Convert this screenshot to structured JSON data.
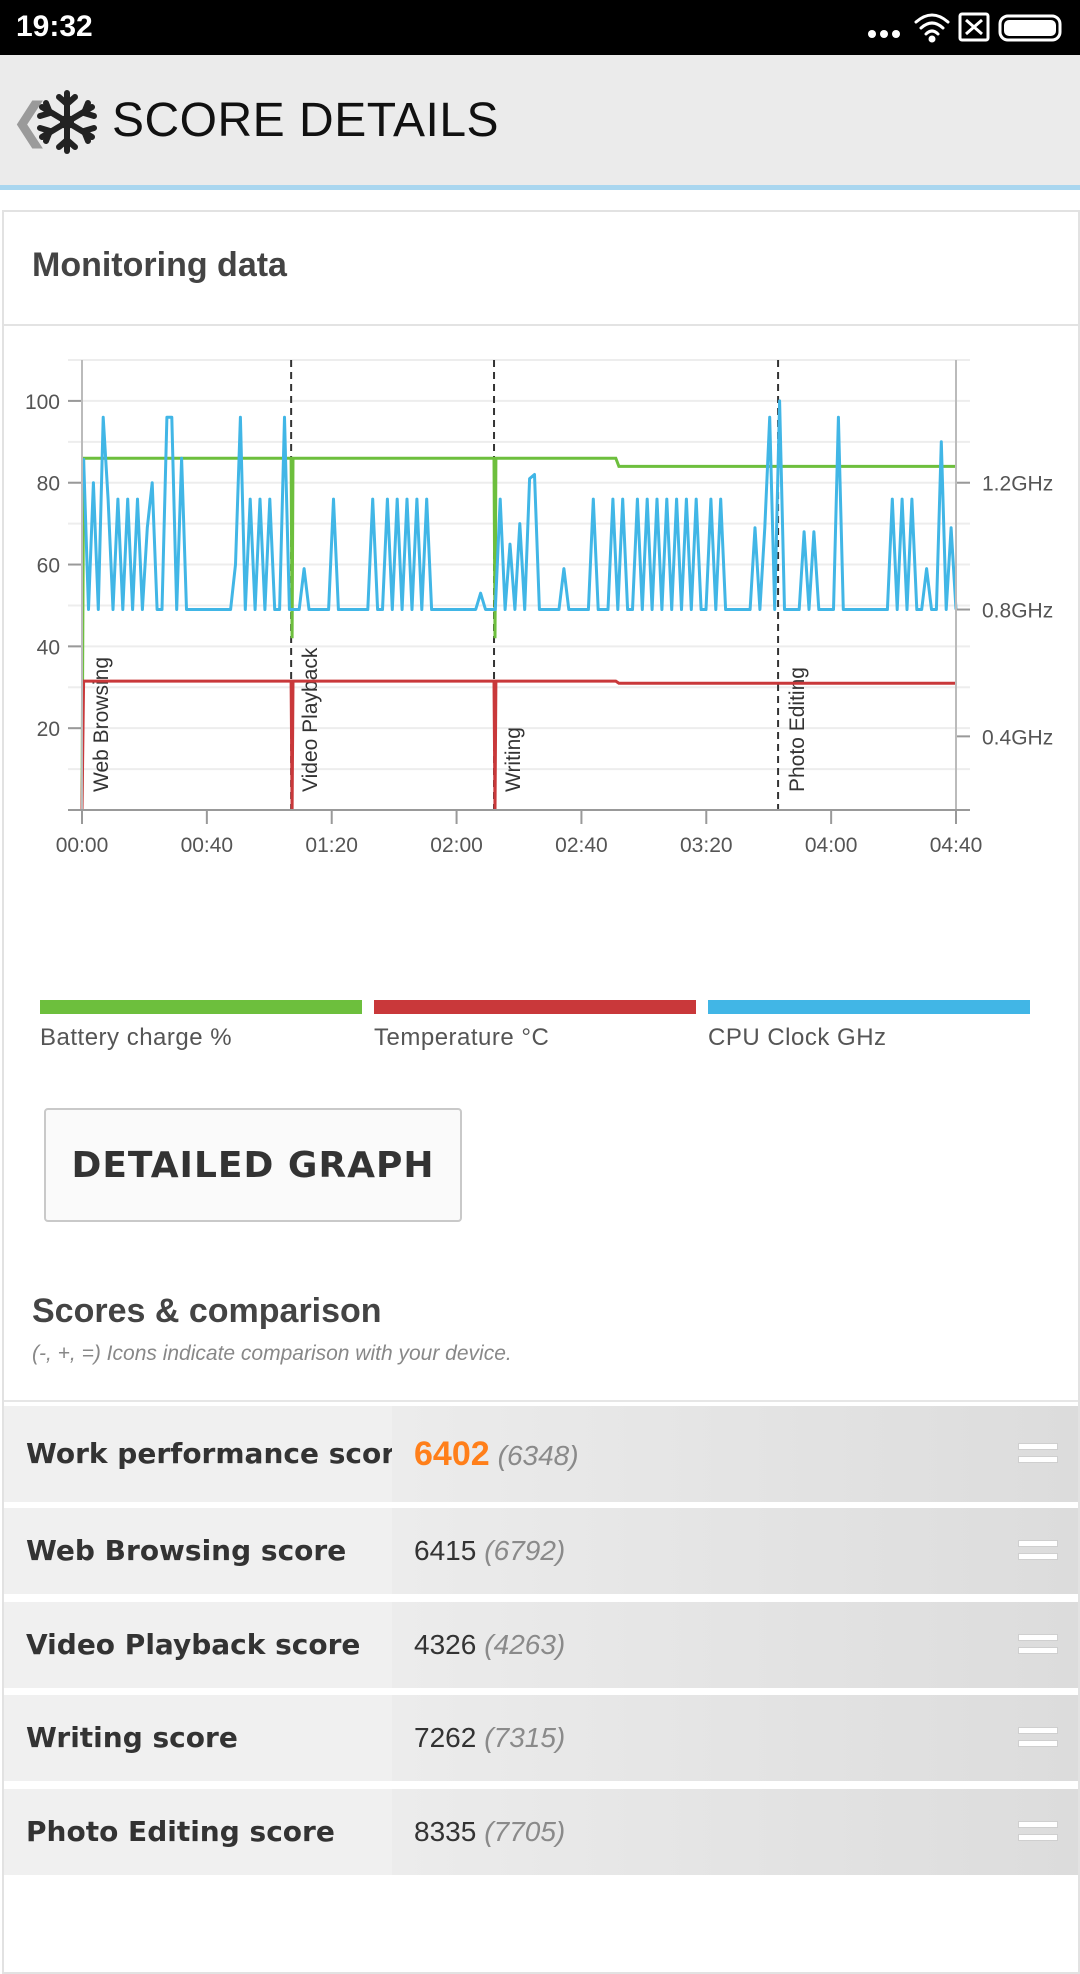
{
  "status_bar": {
    "time": "19:32"
  },
  "header": {
    "title": "SCORE DETAILS"
  },
  "monitoring": {
    "title": "Monitoring data"
  },
  "chart_data": {
    "type": "line",
    "x_ticks": [
      "00:00",
      "00:40",
      "01:20",
      "02:00",
      "02:40",
      "03:20",
      "04:00",
      "04:40"
    ],
    "x_range_minutes": [
      0,
      280
    ],
    "y_left_ticks": [
      "20",
      "40",
      "60",
      "80",
      "100"
    ],
    "y_left_range": [
      0,
      110
    ],
    "y_right_ticks": [
      "0.4GHz",
      "0.8GHz",
      "1.2GHz"
    ],
    "segments": [
      {
        "label": "Web Browsing",
        "start_min": 0
      },
      {
        "label": "Video Playback",
        "start_min": 67
      },
      {
        "label": "Writing",
        "start_min": 132
      },
      {
        "label": "Photo Editing",
        "start_min": 223
      }
    ],
    "series": [
      {
        "name": "Battery charge %",
        "color": "#6dbf3d",
        "points": [
          [
            0,
            0
          ],
          [
            0.5,
            86
          ],
          [
            67,
            86
          ],
          [
            67.3,
            42
          ],
          [
            67.6,
            86
          ],
          [
            132,
            86
          ],
          [
            132.3,
            42
          ],
          [
            132.6,
            86
          ],
          [
            171,
            86
          ],
          [
            172,
            84
          ],
          [
            280,
            84
          ]
        ]
      },
      {
        "name": "Temperature °C",
        "color": "#c9383a",
        "points": [
          [
            0,
            0
          ],
          [
            0.5,
            31.5
          ],
          [
            67,
            31.5
          ],
          [
            67.3,
            0
          ],
          [
            67.6,
            31.5
          ],
          [
            132,
            31.5
          ],
          [
            132.3,
            0
          ],
          [
            132.6,
            31.5
          ],
          [
            171,
            31.5
          ],
          [
            172,
            31
          ],
          [
            280,
            31
          ]
        ]
      },
      {
        "name": "CPU Clock GHz",
        "color": "#41b6e6",
        "values_percent": [
          86,
          49,
          80,
          49,
          96,
          76,
          49,
          76,
          49,
          76,
          49,
          76,
          49,
          69,
          80,
          49,
          49,
          96,
          96,
          49,
          86,
          49,
          49,
          49,
          49,
          49,
          49,
          49,
          49,
          49,
          49,
          60,
          96,
          49,
          76,
          49,
          76,
          49,
          76,
          49,
          49,
          96,
          49,
          49,
          49,
          59,
          49,
          49,
          49,
          49,
          49,
          76,
          49,
          49,
          49,
          49,
          49,
          49,
          49,
          76,
          49,
          49,
          76,
          49,
          76,
          49,
          76,
          49,
          76,
          49,
          76,
          49,
          49,
          49,
          49,
          49,
          49,
          49,
          49,
          49,
          49,
          53,
          49,
          49,
          49,
          76,
          49,
          65,
          49,
          70,
          49,
          81,
          82,
          49,
          49,
          49,
          49,
          49,
          59,
          49,
          49,
          49,
          49,
          49,
          76,
          49,
          49,
          49,
          76,
          49,
          76,
          49,
          49,
          76,
          49,
          76,
          49,
          76,
          49,
          76,
          49,
          76,
          49,
          76,
          49,
          76,
          49,
          49,
          76,
          49,
          76,
          49,
          49,
          49,
          49,
          49,
          49,
          69,
          49,
          69,
          96,
          49,
          100,
          49,
          49,
          49,
          49,
          68,
          49,
          68,
          49,
          49,
          49,
          49,
          96,
          49,
          49,
          49,
          49,
          49,
          49,
          49,
          49,
          49,
          49,
          76,
          49,
          76,
          49,
          76,
          49,
          49,
          59,
          49,
          49,
          90,
          49,
          69,
          49
        ]
      }
    ],
    "legend_placement": "bottom"
  },
  "detailed_button": {
    "label": "DETAILED GRAPH"
  },
  "scores": {
    "title": "Scores & comparison",
    "subtitle": "(-, +, =) Icons indicate comparison with your device.",
    "rows": [
      {
        "name": "Work performance score",
        "value": "6402",
        "compare": "(6348)",
        "highlight": true,
        "icon": "equal-icon"
      },
      {
        "name": "Web Browsing score",
        "value": "6415",
        "compare": "(6792)",
        "icon": "equal-icon"
      },
      {
        "name": "Video Playback score",
        "value": "4326",
        "compare": "(4263)",
        "icon": "equal-icon"
      },
      {
        "name": "Writing score",
        "value": "7262",
        "compare": "(7315)",
        "icon": "equal-icon"
      },
      {
        "name": "Photo Editing score",
        "value": "8335",
        "compare": "(7705)",
        "icon": "equal-icon"
      }
    ]
  }
}
